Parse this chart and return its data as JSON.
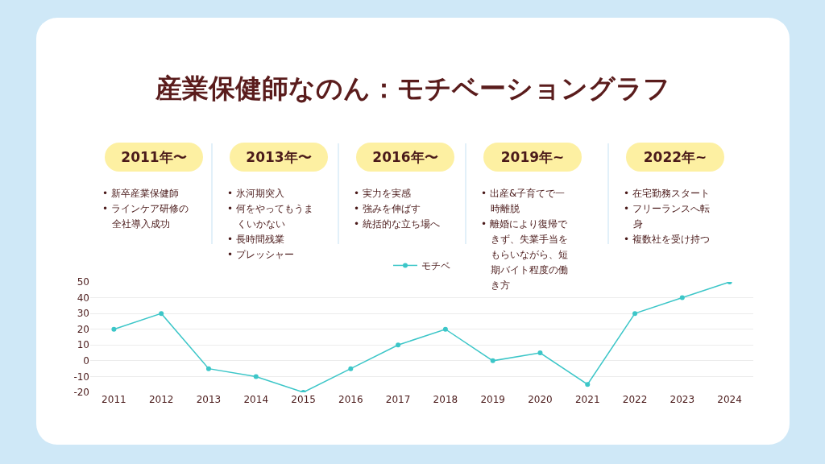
{
  "chart_data": {
    "type": "line",
    "title": "産業保健師なのん：モチベーショングラフ",
    "annotations": [
      "2011年〜",
      "• 新卒産業保健師",
      "• ラインケア研修の全社導入成功",
      "2013年〜",
      "• 氷河期突入",
      "• 何をやってもうまくいかない",
      "• 長時間残業",
      "• プレッシャー",
      "2016年〜",
      "• 実力を実感",
      "• 強みを伸ばす",
      "• 統括的な立ち場へ",
      "2019年~",
      "• 出産&子育てで一時離脱",
      "• 離婚により復帰できず、失業手当をもらいながら、短期バイト程度の働き方",
      "2022年~",
      "• 在宅勤務スタート",
      "• フリーランスへ転身",
      "• 複数社を受け持つ"
    ],
    "categories": [
      "2011",
      "2012",
      "2013",
      "2014",
      "2015",
      "2016",
      "2017",
      "2018",
      "2019",
      "2020",
      "2021",
      "2022",
      "2023",
      "2024"
    ],
    "series": [
      {
        "name": "モチベ",
        "color": "#3cc6c8",
        "values": [
          20,
          30,
          -5,
          -10,
          -20,
          -5,
          10,
          20,
          0,
          5,
          -15,
          30,
          40,
          50
        ]
      }
    ],
    "ylim": [
      -20,
      50
    ],
    "yticks": [
      -20,
      -10,
      0,
      10,
      20,
      30,
      40,
      50
    ],
    "grid": "y",
    "legend": "top",
    "marker": "circle",
    "line_style": "solid"
  }
}
